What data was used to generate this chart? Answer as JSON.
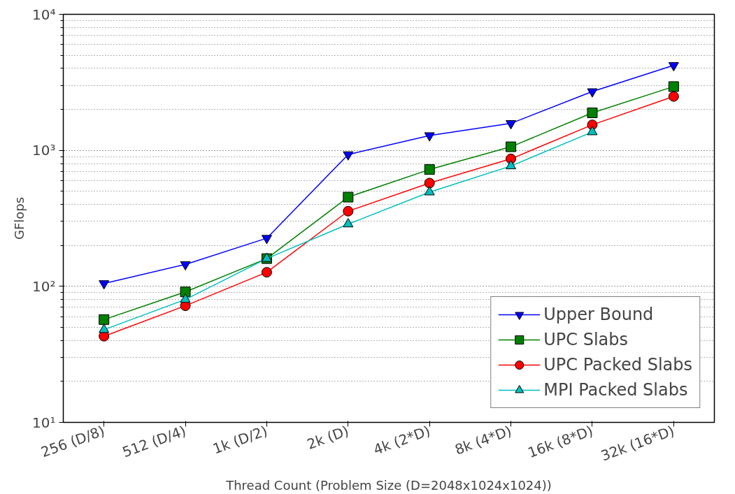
{
  "chart_data": {
    "type": "line",
    "xlabel": "Thread Count (Problem Size (D=2048x1024x1024))",
    "ylabel": "GFlops",
    "categories": [
      "256 (D/8)",
      "512 (D/4)",
      "1k (D/2)",
      "2k (D)",
      "4k (2*D)",
      "8k (4*D)",
      "16k (8*D)",
      "32k (16*D)"
    ],
    "series": [
      {
        "name": "Upper Bound",
        "color": "#0000ff",
        "marker": "triangle_down",
        "values": [
          105,
          145,
          226,
          931,
          1285,
          1578,
          2705,
          4217
        ]
      },
      {
        "name": "UPC Slabs",
        "color": "#008000",
        "marker": "square",
        "values": [
          57,
          91,
          160,
          453,
          723,
          1062,
          1888,
          2944
        ]
      },
      {
        "name": "UPC Packed Slabs",
        "color": "#ff0000",
        "marker": "circle",
        "values": [
          43,
          72,
          127,
          357,
          575,
          866,
          1540,
          2489
        ]
      },
      {
        "name": "MPI Packed Slabs",
        "color": "#00bfbf",
        "marker": "triangle",
        "values": [
          48,
          80,
          160,
          287,
          493,
          767,
          1365,
          null
        ]
      }
    ],
    "log": "y",
    "ylim": [
      10,
      10000
    ],
    "yticks": [
      {
        "value": 10,
        "label": "10¹"
      },
      {
        "value": 100,
        "label": "10²"
      },
      {
        "value": 1000,
        "label": "10³"
      },
      {
        "value": 10000,
        "label": "10⁴"
      }
    ],
    "grid": "y",
    "legend": "bottom right"
  }
}
